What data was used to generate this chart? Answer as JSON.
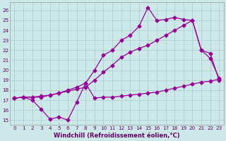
{
  "xlabel": "Windchill (Refroidissement éolien,°C)",
  "bg_color": "#cce8e8",
  "grid_color": "#aacccc",
  "line_color": "#990099",
  "x_ticks": [
    0,
    1,
    2,
    3,
    4,
    5,
    6,
    7,
    8,
    9,
    10,
    11,
    12,
    13,
    14,
    15,
    16,
    17,
    18,
    19,
    20,
    21,
    22,
    23
  ],
  "y_ticks": [
    15,
    16,
    17,
    18,
    19,
    20,
    21,
    22,
    23,
    24,
    25,
    26
  ],
  "ylim": [
    14.5,
    26.8
  ],
  "xlim": [
    -0.5,
    23.5
  ],
  "line_bottom_x": [
    0,
    1,
    2,
    3,
    4,
    5,
    6,
    7,
    8,
    9,
    10,
    11,
    12,
    13,
    14,
    15,
    16,
    17,
    18,
    19,
    20,
    21,
    22,
    23
  ],
  "line_bottom_y": [
    17.2,
    17.3,
    17.0,
    16.1,
    15.1,
    15.3,
    15.0,
    16.8,
    18.7,
    17.2,
    17.3,
    17.3,
    17.4,
    17.5,
    17.6,
    17.7,
    17.8,
    18.0,
    18.2,
    18.4,
    18.6,
    18.8,
    18.9,
    19.1
  ],
  "line_mid_x": [
    0,
    1,
    2,
    3,
    4,
    5,
    6,
    7,
    8,
    9,
    10,
    11,
    12,
    13,
    14,
    15,
    16,
    17,
    18,
    19,
    20,
    21,
    22,
    23
  ],
  "line_mid_y": [
    17.2,
    17.3,
    17.3,
    17.3,
    17.5,
    17.7,
    17.9,
    18.1,
    18.3,
    19.0,
    19.8,
    20.5,
    21.3,
    21.8,
    22.2,
    22.5,
    23.0,
    23.5,
    24.0,
    24.5,
    25.0,
    22.0,
    21.2,
    19.2
  ],
  "line_top_x": [
    0,
    1,
    2,
    3,
    4,
    5,
    6,
    7,
    8,
    9,
    10,
    11,
    12,
    13,
    14,
    15,
    16,
    17,
    18,
    19,
    20,
    21,
    22,
    23
  ],
  "line_top_y": [
    17.2,
    17.3,
    17.3,
    17.4,
    17.5,
    17.7,
    18.0,
    18.3,
    18.7,
    20.0,
    21.5,
    22.0,
    23.0,
    23.5,
    24.4,
    26.3,
    25.0,
    25.1,
    25.3,
    25.1,
    25.0,
    22.0,
    21.7,
    19.0
  ],
  "marker_size": 2.5,
  "line_width": 0.9,
  "tick_fontsize": 5.2,
  "xlabel_fontsize": 6.0,
  "tick_color": "#660066"
}
